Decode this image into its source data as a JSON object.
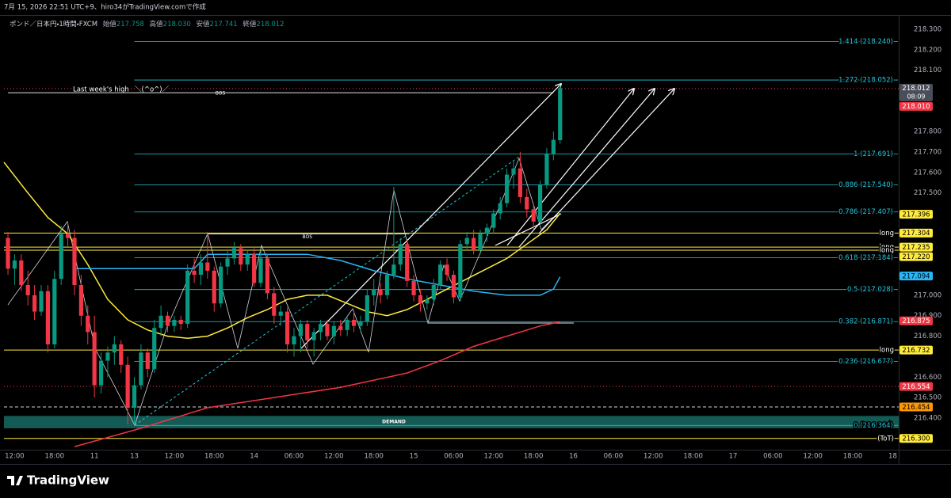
{
  "header": "7月 15, 2026 22:51 UTC+9、hiro34がTradingView.comで作成",
  "footer": "TradingView",
  "chart_data": {
    "type": "candlestick",
    "title": "ポンド／日本円・1時間・FXCM",
    "ohlc": {
      "labels": [
        "始値",
        "高値",
        "安値",
        "終値"
      ],
      "values": [
        217.758,
        218.03,
        217.741,
        218.012
      ],
      "value_labels": [
        "217.758",
        "218.030",
        "217.741",
        "218.012"
      ]
    },
    "up_color": "#089981",
    "down_color": "#f23645",
    "xlim": [
      -0.6,
      133.9
    ],
    "ylim": [
      216.245,
      218.358
    ],
    "grid": false,
    "xticks": [
      {
        "value": 1,
        "label": "12:00"
      },
      {
        "value": 7,
        "label": "18:00"
      },
      {
        "value": 13,
        "label": "11"
      },
      {
        "value": 19,
        "label": "13"
      },
      {
        "value": 25,
        "label": "12:00"
      },
      {
        "value": 31,
        "label": "18:00"
      },
      {
        "value": 37,
        "label": "14"
      },
      {
        "value": 43,
        "label": "06:00"
      },
      {
        "value": 49,
        "label": "12:00"
      },
      {
        "value": 55,
        "label": "18:00"
      },
      {
        "value": 61,
        "label": "15"
      },
      {
        "value": 67,
        "label": "06:00"
      },
      {
        "value": 73,
        "label": "12:00"
      },
      {
        "value": 79,
        "label": "18:00"
      },
      {
        "value": 85,
        "label": "16"
      },
      {
        "value": 91,
        "label": "06:00"
      },
      {
        "value": 97,
        "label": "12:00"
      },
      {
        "value": 103,
        "label": "18:00"
      },
      {
        "value": 109,
        "label": "17"
      },
      {
        "value": 115,
        "label": "06:00"
      },
      {
        "value": 121,
        "label": "12:00"
      },
      {
        "value": 127,
        "label": "18:00"
      },
      {
        "value": 133,
        "label": "18"
      }
    ],
    "yticks": [
      {
        "value": 218.3,
        "label": "218.300"
      },
      {
        "value": 218.2,
        "label": "218.200"
      },
      {
        "value": 218.1,
        "label": "218.100"
      },
      {
        "value": 217.8,
        "label": "217.800"
      },
      {
        "value": 217.7,
        "label": "217.700"
      },
      {
        "value": 217.6,
        "label": "217.600"
      },
      {
        "value": 217.5,
        "label": "217.500"
      },
      {
        "value": 217.0,
        "label": "217.000"
      },
      {
        "value": 216.9,
        "label": "216.900"
      },
      {
        "value": 216.8,
        "label": "216.800"
      },
      {
        "value": 216.6,
        "label": "216.600"
      },
      {
        "value": 216.5,
        "label": "216.500"
      },
      {
        "value": 216.4,
        "label": "216.400"
      }
    ],
    "candles": [
      [
        217.28,
        217.31,
        217.1,
        217.13
      ],
      [
        217.13,
        217.2,
        217.05,
        217.17
      ],
      [
        217.17,
        217.2,
        217.02,
        217.05
      ],
      [
        217.05,
        217.12,
        216.95,
        217.0
      ],
      [
        217.0,
        217.05,
        216.88,
        216.92
      ],
      [
        216.92,
        217.05,
        216.9,
        217.02
      ],
      [
        217.02,
        217.05,
        216.72,
        216.76
      ],
      [
        216.76,
        217.12,
        216.74,
        217.08
      ],
      [
        217.08,
        217.34,
        217.05,
        217.3
      ],
      [
        217.3,
        217.36,
        217.24,
        217.28
      ],
      [
        217.28,
        217.32,
        217.0,
        217.05
      ],
      [
        217.05,
        217.1,
        216.85,
        216.9
      ],
      [
        216.9,
        216.95,
        216.76,
        216.82
      ],
      [
        216.82,
        216.9,
        216.5,
        216.56
      ],
      [
        216.56,
        216.72,
        216.52,
        216.68
      ],
      [
        216.68,
        216.75,
        216.6,
        216.72
      ],
      [
        216.72,
        216.8,
        216.66,
        216.76
      ],
      [
        216.76,
        216.78,
        216.62,
        216.66
      ],
      [
        216.66,
        216.7,
        216.37,
        216.45
      ],
      [
        216.45,
        216.6,
        216.37,
        216.56
      ],
      [
        216.56,
        216.76,
        216.54,
        216.72
      ],
      [
        216.72,
        216.74,
        216.6,
        216.64
      ],
      [
        216.64,
        216.88,
        216.62,
        216.84
      ],
      [
        216.84,
        216.95,
        216.8,
        216.9
      ],
      [
        216.9,
        216.92,
        216.82,
        216.85
      ],
      [
        216.85,
        216.9,
        216.82,
        216.88
      ],
      [
        216.88,
        216.9,
        216.83,
        216.86
      ],
      [
        216.86,
        217.15,
        216.84,
        217.12
      ],
      [
        217.12,
        217.18,
        217.06,
        217.1
      ],
      [
        217.1,
        217.2,
        217.05,
        217.16
      ],
      [
        217.16,
        217.31,
        217.08,
        217.12
      ],
      [
        217.12,
        217.14,
        216.92,
        216.96
      ],
      [
        216.96,
        217.16,
        216.94,
        217.14
      ],
      [
        217.14,
        217.22,
        217.1,
        217.18
      ],
      [
        217.18,
        217.26,
        217.15,
        217.23
      ],
      [
        217.23,
        217.25,
        217.12,
        217.15
      ],
      [
        217.15,
        217.22,
        217.12,
        217.2
      ],
      [
        217.2,
        217.23,
        217.04,
        217.06
      ],
      [
        217.06,
        217.22,
        217.04,
        217.18
      ],
      [
        217.18,
        217.2,
        216.98,
        217.01
      ],
      [
        217.01,
        217.04,
        216.86,
        216.9
      ],
      [
        216.9,
        216.95,
        216.85,
        216.92
      ],
      [
        216.92,
        216.94,
        216.72,
        216.76
      ],
      [
        216.76,
        216.84,
        216.7,
        216.8
      ],
      [
        216.8,
        216.88,
        216.72,
        216.86
      ],
      [
        216.86,
        216.88,
        216.74,
        216.78
      ],
      [
        216.78,
        216.84,
        216.7,
        216.82
      ],
      [
        216.82,
        216.88,
        216.78,
        216.86
      ],
      [
        216.86,
        216.88,
        216.78,
        216.8
      ],
      [
        216.8,
        216.87,
        216.76,
        216.85
      ],
      [
        216.85,
        216.88,
        216.8,
        216.83
      ],
      [
        216.83,
        216.9,
        216.8,
        216.88
      ],
      [
        216.88,
        216.92,
        216.82,
        216.85
      ],
      [
        216.85,
        216.9,
        216.82,
        216.87
      ],
      [
        216.87,
        217.03,
        216.85,
        217.0
      ],
      [
        217.0,
        217.08,
        216.95,
        217.03
      ],
      [
        217.03,
        217.06,
        216.96,
        217.0
      ],
      [
        217.0,
        217.12,
        216.98,
        217.1
      ],
      [
        217.1,
        217.53,
        217.08,
        217.15
      ],
      [
        217.15,
        217.28,
        217.12,
        217.25
      ],
      [
        217.25,
        217.27,
        217.04,
        217.07
      ],
      [
        217.07,
        217.1,
        216.97,
        217.0
      ],
      [
        217.0,
        217.03,
        216.92,
        216.96
      ],
      [
        216.96,
        217.0,
        216.93,
        216.98
      ],
      [
        216.98,
        217.08,
        216.95,
        217.05
      ],
      [
        217.05,
        217.17,
        217.03,
        217.15
      ],
      [
        217.15,
        217.18,
        217.07,
        217.1
      ],
      [
        217.1,
        217.12,
        216.96,
        216.99
      ],
      [
        216.99,
        217.27,
        216.97,
        217.25
      ],
      [
        217.25,
        217.31,
        217.22,
        217.28
      ],
      [
        217.28,
        217.32,
        217.2,
        217.22
      ],
      [
        217.22,
        217.32,
        217.2,
        217.3
      ],
      [
        217.3,
        217.35,
        217.26,
        217.33
      ],
      [
        217.33,
        217.42,
        217.3,
        217.4
      ],
      [
        217.4,
        217.48,
        217.37,
        217.45
      ],
      [
        217.45,
        217.62,
        217.43,
        217.59
      ],
      [
        217.59,
        217.66,
        217.52,
        217.62
      ],
      [
        217.62,
        217.7,
        217.45,
        217.48
      ],
      [
        217.48,
        217.52,
        217.38,
        217.42
      ],
      [
        217.42,
        217.45,
        217.32,
        217.36
      ],
      [
        217.36,
        217.56,
        217.34,
        217.54
      ],
      [
        217.54,
        217.72,
        217.52,
        217.69
      ],
      [
        217.69,
        217.8,
        217.66,
        217.76
      ],
      [
        217.758,
        218.03,
        217.741,
        218.012
      ]
    ],
    "lines": [
      {
        "color": "#ffeb3b",
        "x": [
          -0.6,
          3,
          6,
          9,
          12,
          15,
          18,
          21,
          24,
          27,
          30,
          33,
          36,
          39,
          42,
          45,
          48,
          51,
          54,
          57,
          60,
          63,
          66,
          69,
          72,
          75,
          78,
          81,
          83
        ],
        "values": [
          217.65,
          217.5,
          217.38,
          217.3,
          217.15,
          216.98,
          216.88,
          216.83,
          216.8,
          216.79,
          216.8,
          216.84,
          216.89,
          216.93,
          216.98,
          217.0,
          217.0,
          216.96,
          216.92,
          216.9,
          216.93,
          216.98,
          217.03,
          217.08,
          217.13,
          217.18,
          217.25,
          217.32,
          217.4
        ]
      },
      {
        "color": "#f23645",
        "x": [
          10,
          20,
          30,
          40,
          50,
          60,
          65,
          70,
          75,
          80,
          83
        ],
        "values": [
          216.26,
          216.35,
          216.45,
          216.5,
          216.55,
          216.62,
          216.68,
          216.75,
          216.8,
          216.85,
          216.87
        ]
      },
      {
        "color": "#29b6f6",
        "x": [
          10,
          20,
          28,
          30,
          45,
          50,
          55,
          60,
          65,
          70,
          75,
          80,
          82,
          83
        ],
        "values": [
          217.13,
          217.13,
          217.13,
          217.2,
          217.2,
          217.17,
          217.12,
          217.08,
          217.05,
          217.02,
          217.0,
          217.0,
          217.03,
          217.09
        ]
      }
    ],
    "fib": {
      "from": 19,
      "color": "#26c6da",
      "levels": [
        {
          "value": 218.24,
          "label": "1.414 (218.240)"
        },
        {
          "value": 218.052,
          "label": "1.272 (218.052)"
        },
        {
          "value": 217.691,
          "label": "1 (217.691)"
        },
        {
          "value": 217.54,
          "label": "0.886 (217.540)"
        },
        {
          "value": 217.407,
          "label": "0.786 (217.407)"
        },
        {
          "value": 217.184,
          "label": "0.618 (217.184)"
        },
        {
          "value": 217.028,
          "label": "0.5 (217.028)"
        },
        {
          "value": 216.871,
          "label": "0.382 (216.871)"
        },
        {
          "value": 216.677,
          "label": "0.236 (216.677)"
        },
        {
          "value": 216.364,
          "label": "0 (216.364)"
        }
      ]
    },
    "levels": [
      {
        "value": 218.01,
        "color": "#f23645",
        "style": "dotted",
        "label": "Last week's high",
        "note": "＼(^o^)／",
        "label_align": "left"
      },
      {
        "value": 217.304,
        "color": "#ffeb3b",
        "style": "solid",
        "label": "long",
        "label_align": "right"
      },
      {
        "value": 217.235,
        "color": "#ffeb3b",
        "style": "solid",
        "label": "long",
        "label_align": "right"
      },
      {
        "value": 217.22,
        "color": "#ffeb3b",
        "style": "solid",
        "label": "long",
        "label_align": "right"
      },
      {
        "value": 216.732,
        "color": "#ffeb3b",
        "style": "solid",
        "label": "long",
        "label_align": "right"
      },
      {
        "value": 216.554,
        "color": "#f23645",
        "style": "dotted"
      },
      {
        "value": 216.454,
        "color": "#d1d4dc",
        "style": "dashed"
      },
      {
        "value": 216.3,
        "color": "#ffeb3b",
        "style": "solid",
        "label": "(ToT)",
        "label_align": "right"
      }
    ],
    "bos": [
      {
        "label": "BOS",
        "value": 217.99,
        "x": [
          0,
          82
        ]
      },
      {
        "label": "BOS",
        "value": 217.3,
        "x": [
          30,
          60
        ]
      }
    ],
    "zone": {
      "label": "DEMAND",
      "ylim": [
        216.35,
        216.41
      ],
      "color": "#26a69a"
    },
    "countdown": "08:09",
    "price_tags": {
      "values": [
        218.012,
        218.01,
        217.396,
        217.304,
        217.235,
        217.22,
        217.094,
        216.875,
        216.732,
        216.554,
        216.454,
        216.3
      ],
      "value_labels": [
        "218.012",
        "218.010",
        "217.396",
        "217.304",
        "217.235",
        "217.220",
        "217.094",
        "216.875",
        "216.732",
        "216.554",
        "216.454",
        "216.300"
      ],
      "colors": [
        "#4a4e59",
        "#f23645",
        "#ffeb3b",
        "#ffeb3b",
        "#ffeb3b",
        "#ffeb3b",
        "#29b6f6",
        "#f23645",
        "#ffeb3b",
        "#f23645",
        "#ff9800",
        "#ffeb3b"
      ],
      "text_colors": [
        "#ffffff",
        "#ffffff",
        "#000000",
        "#000000",
        "#000000",
        "#000000",
        "#000000",
        "#ffffff",
        "#000000",
        "#ffffff",
        "#000000",
        "#000000"
      ]
    }
  }
}
